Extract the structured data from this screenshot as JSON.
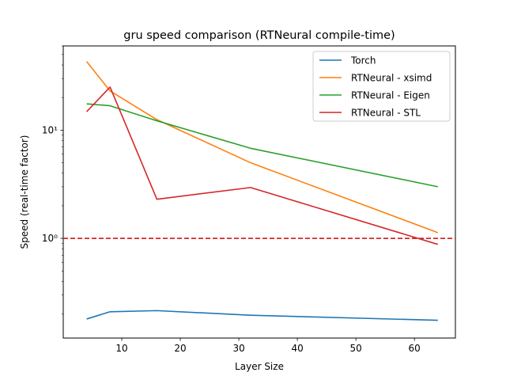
{
  "chart_data": {
    "type": "line",
    "title": "gru speed comparison (RTNeural compile-time)",
    "xlabel": "Layer Size",
    "ylabel": "Speed (real-time factor)",
    "x": [
      4,
      8,
      16,
      32,
      64
    ],
    "xlim": [
      0,
      67
    ],
    "ylim": [
      0.12,
      60
    ],
    "yscale": "log",
    "x_ticks": [
      10,
      20,
      30,
      40,
      50,
      60
    ],
    "y_ticks": [
      {
        "value": 1,
        "label": "10⁰"
      },
      {
        "value": 10,
        "label": "10¹"
      }
    ],
    "reference_line": {
      "y": 1.0,
      "color": "#d62728",
      "style": "dashed"
    },
    "legend_position": "upper right",
    "grid": false,
    "series": [
      {
        "name": "Torch",
        "color": "#1f77b4",
        "values": [
          0.18,
          0.21,
          0.215,
          0.195,
          0.175
        ]
      },
      {
        "name": "RTNeural - xsimd",
        "color": "#ff7f0e",
        "values": [
          43,
          23,
          12.5,
          5.0,
          1.13
        ]
      },
      {
        "name": "RTNeural - Eigen",
        "color": "#2ca02c",
        "values": [
          17.5,
          16.8,
          12.2,
          6.8,
          3.0
        ]
      },
      {
        "name": "RTNeural - STL",
        "color": "#d62728",
        "values": [
          14.8,
          25,
          2.3,
          2.95,
          0.88
        ]
      }
    ]
  }
}
